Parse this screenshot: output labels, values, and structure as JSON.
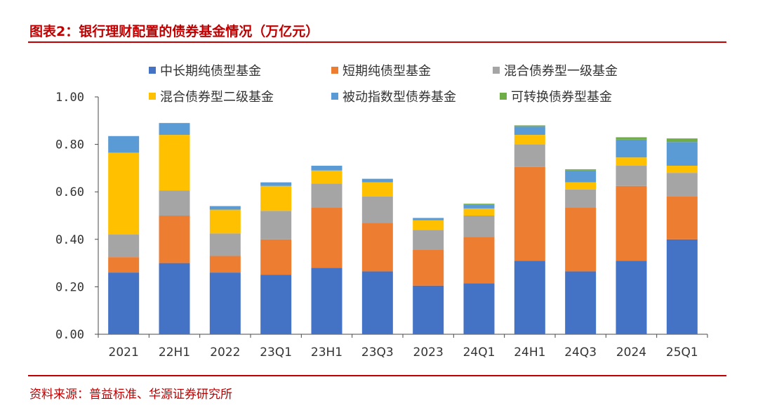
{
  "header": {
    "title": "图表2：银行理财配置的债券基金情况（万亿元）"
  },
  "footer": {
    "source": "资料来源：普益标准、华源证券研究所"
  },
  "chart_data": {
    "type": "bar",
    "stacked": true,
    "title": "",
    "xlabel": "",
    "ylabel": "",
    "ylim": [
      0,
      1.0
    ],
    "yticks": [
      "0.00",
      "0.20",
      "0.40",
      "0.60",
      "0.80",
      "1.00"
    ],
    "grid": false,
    "legend_position": "top",
    "categories": [
      "2021",
      "22H1",
      "2022",
      "23Q1",
      "23H1",
      "23Q3",
      "2023",
      "24Q1",
      "24H1",
      "24Q3",
      "2024",
      "25Q1"
    ],
    "series": [
      {
        "name": "中长期纯债型基金",
        "color": "#4472C4",
        "values": [
          0.26,
          0.3,
          0.26,
          0.25,
          0.28,
          0.265,
          0.205,
          0.215,
          0.31,
          0.265,
          0.31,
          0.4
        ]
      },
      {
        "name": "短期纯债型基金",
        "color": "#ED7D31",
        "values": [
          0.065,
          0.2,
          0.07,
          0.15,
          0.255,
          0.205,
          0.15,
          0.195,
          0.395,
          0.27,
          0.315,
          0.18
        ]
      },
      {
        "name": "混合债券型一级基金",
        "color": "#A5A5A5",
        "values": [
          0.095,
          0.105,
          0.095,
          0.12,
          0.1,
          0.11,
          0.085,
          0.09,
          0.095,
          0.075,
          0.085,
          0.1
        ]
      },
      {
        "name": "混合债券型二级基金",
        "color": "#FFC000",
        "values": [
          0.345,
          0.235,
          0.1,
          0.105,
          0.055,
          0.06,
          0.04,
          0.03,
          0.04,
          0.03,
          0.035,
          0.03
        ]
      },
      {
        "name": "被动指数型债券基金",
        "color": "#5B9BD5",
        "values": [
          0.07,
          0.05,
          0.015,
          0.015,
          0.02,
          0.015,
          0.01,
          0.015,
          0.035,
          0.05,
          0.075,
          0.1
        ]
      },
      {
        "name": "可转换债券型基金",
        "color": "#70AD47",
        "values": [
          0.0,
          0.0,
          0.0,
          0.0,
          0.0,
          0.0,
          0.0,
          0.005,
          0.005,
          0.005,
          0.01,
          0.015
        ]
      }
    ]
  }
}
